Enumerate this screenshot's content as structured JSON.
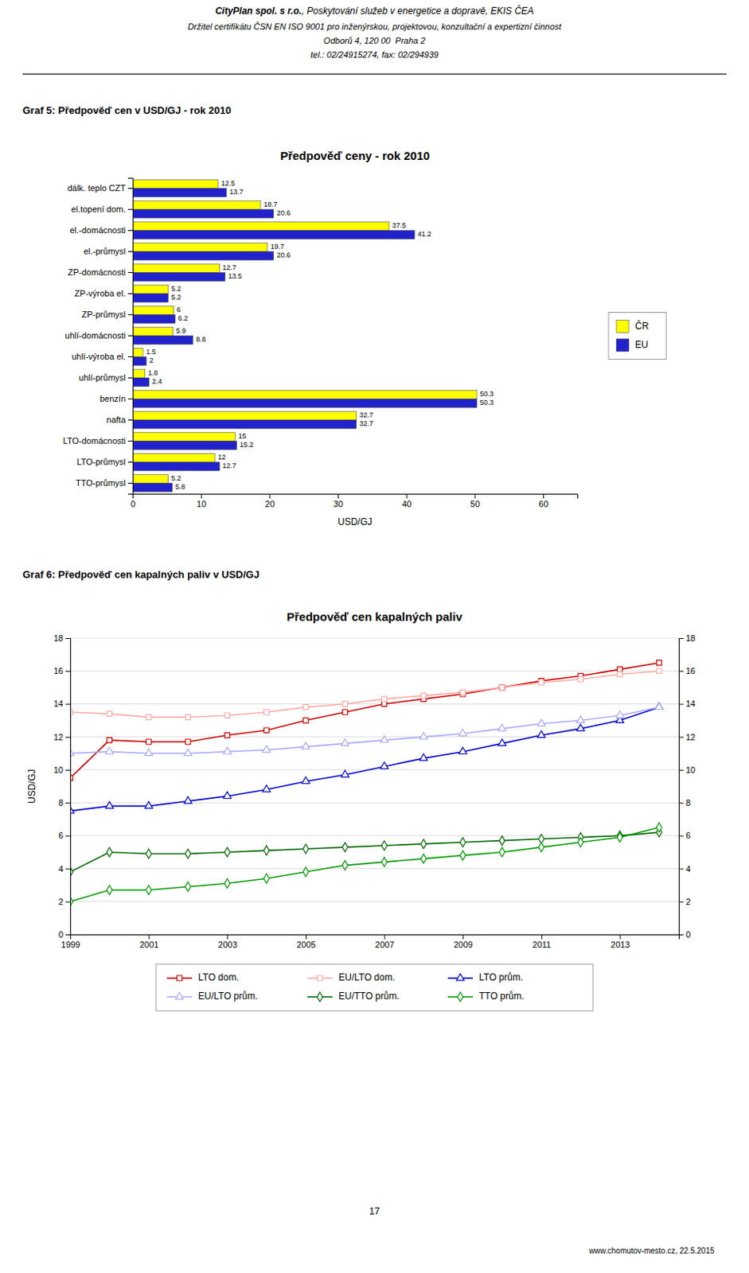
{
  "header": [
    "CityPlan spol. s r.o.",
    ", Poskytování služeb v energetice a dopravě, EKIS ČEA",
    "Držitel certifikátu ČSN EN ISO 9001 pro inženýrskou, projektovou, konzultační a expertizní činnost",
    "Odborů 4, 120 00  Praha 2",
    "tel.: 02/24915274, fax: 02/294939"
  ],
  "page_number": "17",
  "footer": "www.chomutov-mesto.cz, 22.5.2015",
  "chart_data": [
    {
      "type": "bar",
      "orientation": "horizontal",
      "caption": "Graf 5: Předpověď cen v USD/GJ - rok 2010",
      "title": "Předpověď ceny - rok 2010",
      "xlabel": "USD/GJ",
      "categories": [
        "dálk. teplo CZT",
        "el.topení dom.",
        "el.-domácnosti",
        "el.-průmysl",
        "ZP-domácnosti",
        "ZP-výroba el.",
        "ZP-průmysl",
        "uhlí-domácnosti",
        "uhlí-výroba el.",
        "uhlí-průmysl",
        "benzín",
        "nafta",
        "LTO-domácnosti",
        "LTO-průmysl",
        "TTO-průmysl"
      ],
      "series": [
        {
          "name": "ČR",
          "color": "#FFFF00",
          "values": [
            12.5,
            18.7,
            37.5,
            19.7,
            12.7,
            5.2,
            6.0,
            5.9,
            1.5,
            1.8,
            50.3,
            32.7,
            15.0,
            12.0,
            5.2
          ]
        },
        {
          "name": "EU",
          "color": "#2222CC",
          "values": [
            13.7,
            20.6,
            41.2,
            20.6,
            13.5,
            5.2,
            6.2,
            8.8,
            2.0,
            2.4,
            50.3,
            32.7,
            15.2,
            12.7,
            5.8
          ]
        }
      ],
      "xlim": [
        0,
        65
      ],
      "xticks": [
        0,
        10,
        20,
        30,
        40,
        50,
        60
      ],
      "data_labels": true,
      "legend": "right",
      "grid": false
    },
    {
      "type": "line",
      "caption": "Graf 6: Předpověď cen kapalných paliv v USD/GJ",
      "title": "Předpověď cen kapalných paliv",
      "ylabel": "USD/GJ",
      "x": [
        1999,
        2000,
        2001,
        2002,
        2003,
        2004,
        2005,
        2006,
        2007,
        2008,
        2009,
        2010,
        2011,
        2012,
        2013,
        2014
      ],
      "xlim": [
        1999,
        2014.5
      ],
      "xticks": [
        1999,
        2001,
        2003,
        2005,
        2007,
        2009,
        2011,
        2013
      ],
      "ylim": [
        0,
        18
      ],
      "yticks": [
        0,
        2,
        4,
        6,
        8,
        10,
        12,
        14,
        16,
        18
      ],
      "y2lim": [
        0,
        18
      ],
      "y2ticks": [
        0,
        2,
        4,
        6,
        8,
        10,
        12,
        14,
        16,
        18
      ],
      "grid": "y",
      "legend": "bottom",
      "series": [
        {
          "name": "LTO dom.",
          "color": "#CC0000",
          "marker": "square",
          "values": [
            9.5,
            11.8,
            11.7,
            11.7,
            12.1,
            12.4,
            13.0,
            13.5,
            14.0,
            14.3,
            14.6,
            15.0,
            15.4,
            15.7,
            16.1,
            16.5
          ]
        },
        {
          "name": "EU/LTO dom.",
          "color": "#FFAAAA",
          "marker": "square",
          "values": [
            13.5,
            13.4,
            13.2,
            13.2,
            13.3,
            13.5,
            13.8,
            14.0,
            14.3,
            14.5,
            14.7,
            15.0,
            15.3,
            15.5,
            15.8,
            16.0
          ]
        },
        {
          "name": "LTO prům.",
          "color": "#0000CC",
          "marker": "triangle",
          "values": [
            7.5,
            7.8,
            7.8,
            8.1,
            8.4,
            8.8,
            9.3,
            9.7,
            10.2,
            10.7,
            11.1,
            11.6,
            12.1,
            12.5,
            13.0,
            13.8
          ]
        },
        {
          "name": "EU/LTO prům.",
          "color": "#AAAAFF",
          "marker": "triangle",
          "values": [
            11.0,
            11.1,
            11.0,
            11.0,
            11.1,
            11.2,
            11.4,
            11.6,
            11.8,
            12.0,
            12.2,
            12.5,
            12.8,
            13.0,
            13.3,
            13.8
          ]
        },
        {
          "name": "EU/TTO prům.",
          "color": "#006600",
          "marker": "diamond",
          "values": [
            3.8,
            5.0,
            4.9,
            4.9,
            5.0,
            5.1,
            5.2,
            5.3,
            5.4,
            5.5,
            5.6,
            5.7,
            5.8,
            5.9,
            6.0,
            6.2
          ]
        },
        {
          "name": "TTO prům.",
          "color": "#009900",
          "marker": "diamond",
          "values": [
            2.0,
            2.7,
            2.7,
            2.9,
            3.1,
            3.4,
            3.8,
            4.2,
            4.4,
            4.6,
            4.8,
            5.0,
            5.3,
            5.6,
            5.9,
            6.5
          ]
        }
      ]
    }
  ]
}
